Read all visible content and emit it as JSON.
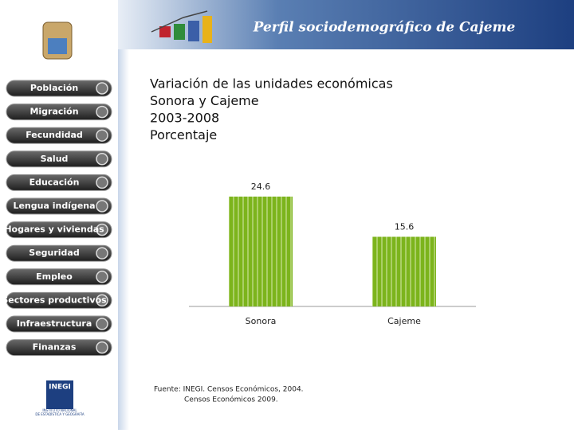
{
  "header": {
    "title": "Perfil sociodemográfico de Cajeme"
  },
  "nav": {
    "items": [
      "Población",
      "Migración",
      "Fecundidad",
      "Salud",
      "Educación",
      "Lengua indígena",
      "Hogares y viviendas",
      "Seguridad",
      "Empleo",
      "Sectores productivos",
      "Infraestructura",
      "Finanzas"
    ]
  },
  "logo": {
    "name": "INEGI",
    "caption_lines": [
      "INSTITUTO NACIONAL",
      "DE ESTADÍSTICA Y GEOGRAFÍA"
    ]
  },
  "chart_data": {
    "type": "bar",
    "title_lines": [
      "Variación de las unidades económicas",
      "Sonora y Cajeme",
      "2003-2008",
      "Porcentaje"
    ],
    "categories": [
      "Sonora",
      "Cajeme"
    ],
    "values": [
      24.6,
      15.6
    ],
    "color": "#7cb41c",
    "source_lines": [
      "Fuente: INEGI. Censos Económicos, 2004.",
      "Censos Económicos 2009."
    ]
  }
}
